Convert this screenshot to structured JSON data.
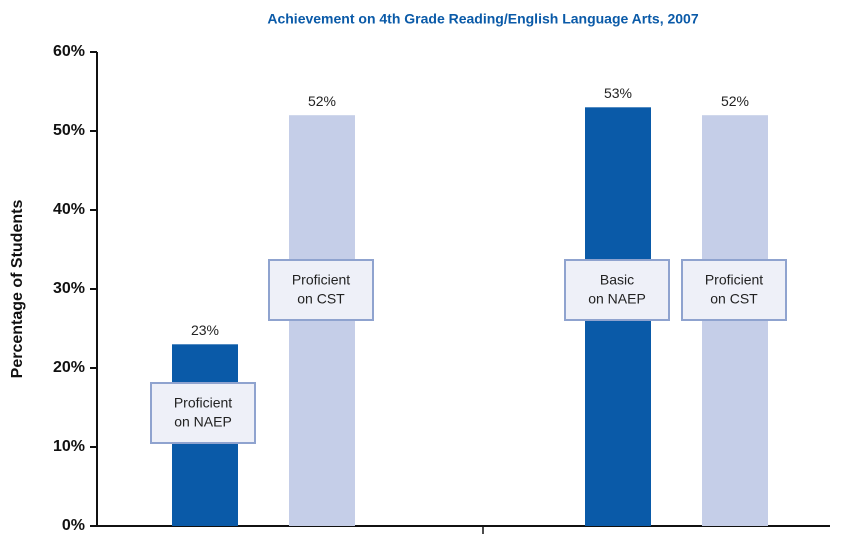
{
  "chart_data": {
    "type": "bar",
    "title": "Achievement on 4th Grade Reading/English Language Arts, 2007",
    "y_label": "Percentage of Students",
    "categories": [
      null,
      null
    ],
    "ylim": [
      0,
      60
    ],
    "yticks": [
      {
        "value": 0,
        "label": "0%"
      },
      {
        "value": 10,
        "label": "10%"
      },
      {
        "value": 20,
        "label": "20%"
      },
      {
        "value": 30,
        "label": "30%"
      },
      {
        "value": 40,
        "label": "40%"
      },
      {
        "value": 50,
        "label": "50%"
      },
      {
        "value": 60,
        "label": "60%"
      }
    ],
    "series": [
      {
        "color": "#0a5aa8",
        "values": [
          23,
          53
        ],
        "value_labels": [
          "23%",
          "53%"
        ],
        "bar_labels": [
          [
            "Proficient",
            "on NAEP"
          ],
          [
            "Basic",
            "on NAEP"
          ]
        ]
      },
      {
        "color": "#c5cee8",
        "values": [
          52,
          52
        ],
        "value_labels": [
          "52%",
          "52%"
        ],
        "bar_labels": [
          [
            "Proficient",
            "on CST"
          ],
          [
            "Proficient",
            "on CST"
          ]
        ]
      }
    ]
  }
}
